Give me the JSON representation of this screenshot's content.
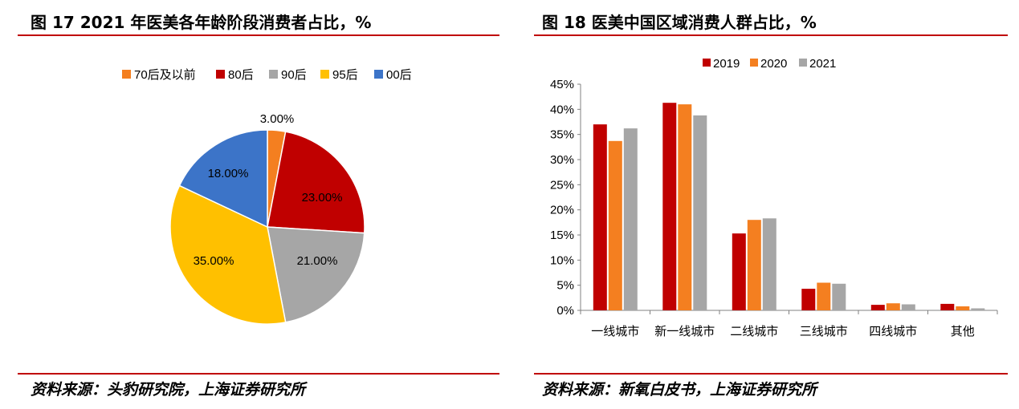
{
  "figure17": {
    "title": "图 17 2021 年医美各年龄阶段消费者占比，%",
    "source": "资料来源：头豹研究院，上海证券研究所"
  },
  "figure18": {
    "title": "图 18 医美中国区域消费人群占比，%",
    "source": "资料来源：新氧白皮书，上海证券研究所"
  },
  "chart_data": [
    {
      "type": "pie",
      "title": "",
      "categories": [
        "70后及以前",
        "80后",
        "90后",
        "95后",
        "00后"
      ],
      "values": [
        3,
        23,
        21,
        35,
        18
      ],
      "labels": [
        "3.00%",
        "23.00%",
        "21.00%",
        "35.00%",
        "18.00%"
      ],
      "colors": [
        "#f47f20",
        "#c00000",
        "#a6a6a6",
        "#ffc000",
        "#3c74c8"
      ],
      "start": "12 o'clock, clockwise",
      "legend": "top"
    },
    {
      "type": "bar",
      "title": "",
      "categories": [
        "一线城市",
        "新一线城市",
        "二线城市",
        "三线城市",
        "四线城市",
        "其他"
      ],
      "series": [
        {
          "name": "2019",
          "color": "#c00000",
          "values": [
            37,
            41.3,
            15.3,
            4.3,
            1.1,
            1.3
          ]
        },
        {
          "name": "2020",
          "color": "#f47f20",
          "values": [
            33.7,
            41,
            18,
            5.5,
            1.4,
            0.8
          ]
        },
        {
          "name": "2021",
          "color": "#a6a6a6",
          "values": [
            36.2,
            38.8,
            18.3,
            5.3,
            1.2,
            0.4
          ]
        }
      ],
      "ylim": [
        0,
        45
      ],
      "yticks": [
        "0%",
        "5%",
        "10%",
        "15%",
        "20%",
        "25%",
        "30%",
        "35%",
        "40%",
        "45%"
      ],
      "xlabel": "",
      "ylabel": "",
      "grid": false,
      "legend": "top"
    }
  ]
}
